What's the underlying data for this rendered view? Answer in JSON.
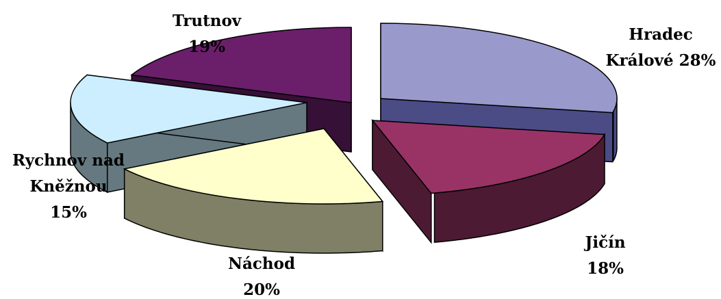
{
  "chart_data": {
    "type": "pie",
    "title": "",
    "slices": [
      {
        "label_lines": [
          "Hradec",
          "Králové 28%"
        ],
        "value": 28,
        "top_color": "#9a99cc",
        "side_color": "#4b4b86",
        "edge_color": "#000000"
      },
      {
        "label_lines": [
          "Jičín",
          "18%"
        ],
        "value": 18,
        "top_color": "#993366",
        "side_color": "#4d1a33",
        "edge_color": "#000000"
      },
      {
        "label_lines": [
          "Náchod",
          "20%"
        ],
        "value": 20,
        "top_color": "#ffffcc",
        "side_color": "#808066",
        "edge_color": "#000000"
      },
      {
        "label_lines": [
          "Rychnov nad",
          "Kněžnou",
          "15%"
        ],
        "value": 15,
        "top_color": "#cceeff",
        "side_color": "#667980",
        "edge_color": "#000000"
      },
      {
        "label_lines": [
          "Trutnov",
          "19%"
        ],
        "value": 19,
        "top_color": "#6b1f6b",
        "side_color": "#361036",
        "edge_color": "#000000"
      }
    ]
  }
}
